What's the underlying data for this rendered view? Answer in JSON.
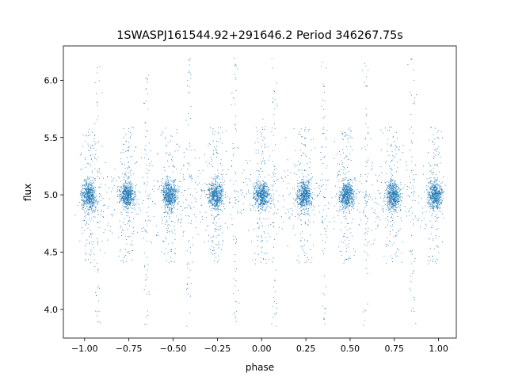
{
  "chart_data": {
    "type": "scatter",
    "title": "1SWASPJ161544.92+291646.2 Period 346267.75s",
    "xlabel": "phase",
    "ylabel": "flux",
    "xlim": [
      -1.12,
      1.1
    ],
    "ylim": [
      3.75,
      6.3
    ],
    "xticks": [
      -1.0,
      -0.75,
      -0.5,
      -0.25,
      0.0,
      0.25,
      0.5,
      0.75,
      1.0
    ],
    "xtick_labels": [
      "−1.00",
      "−0.75",
      "−0.50",
      "−0.25",
      "0.00",
      "0.25",
      "0.50",
      "0.75",
      "1.00"
    ],
    "yticks": [
      4.0,
      4.5,
      5.0,
      5.5,
      6.0
    ],
    "ytick_labels": [
      "4.0",
      "4.5",
      "5.0",
      "5.5",
      "6.0"
    ],
    "grid": false,
    "legend": "none",
    "marker_color": "#1f77b4",
    "marker_size": "tiny",
    "series": [
      {
        "description": "phase-folded light curve, dense clusters around flux 5.0",
        "cluster_centers_phase": [
          -0.98,
          -0.76,
          -0.52,
          -0.26,
          0.0,
          0.24,
          0.48,
          0.74,
          0.98
        ],
        "cluster_center_flux": 5.0,
        "cluster_core_spread_flux": 0.1,
        "cluster_halo_range_flux": [
          4.4,
          5.6
        ],
        "outlier_streak_phases": [
          -0.93,
          -0.65,
          -0.41,
          -0.15,
          0.07,
          0.35,
          0.59,
          0.85
        ],
        "outlier_flux_range": [
          3.85,
          6.2
        ]
      }
    ]
  }
}
